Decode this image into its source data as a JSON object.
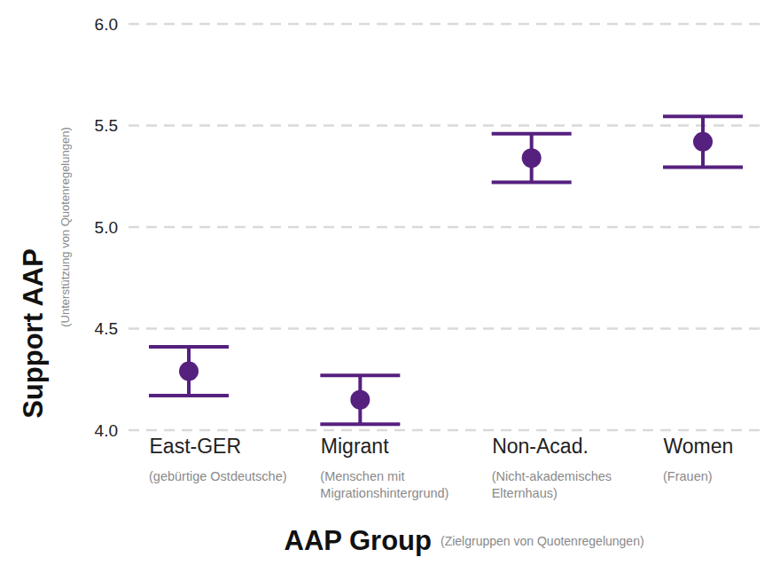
{
  "chart_data": {
    "type": "errorbar",
    "categories": [
      "East-GER",
      "Migrant",
      "Non-Acad.",
      "Women"
    ],
    "category_notes": [
      [
        "(gebürtige Ostdeutsche)"
      ],
      [
        "(Menschen mit",
        "Migrationshintergrund)"
      ],
      [
        "(Nicht-akademisches",
        "Elternhaus)"
      ],
      [
        "(Frauen)"
      ]
    ],
    "values": [
      4.29,
      4.15,
      5.34,
      5.42
    ],
    "error": [
      0.12,
      0.12,
      0.12,
      0.125
    ],
    "color": "#56207f",
    "x_label": "AAP Group",
    "x_sublabel": "(Zielgruppen von Quotenregelungen)",
    "y_label": "Support AAP",
    "y_sublabel": "(Unterstützung von Quotenregelungen)",
    "ylim": [
      4.0,
      6.0
    ],
    "yticks": [
      {
        "value": 4.0,
        "label": "4.0"
      },
      4.5,
      {
        "value": 5.0,
        "label": "5.0"
      },
      5.5,
      {
        "value": 6.0,
        "label": "6.0"
      }
    ],
    "grid": true
  }
}
